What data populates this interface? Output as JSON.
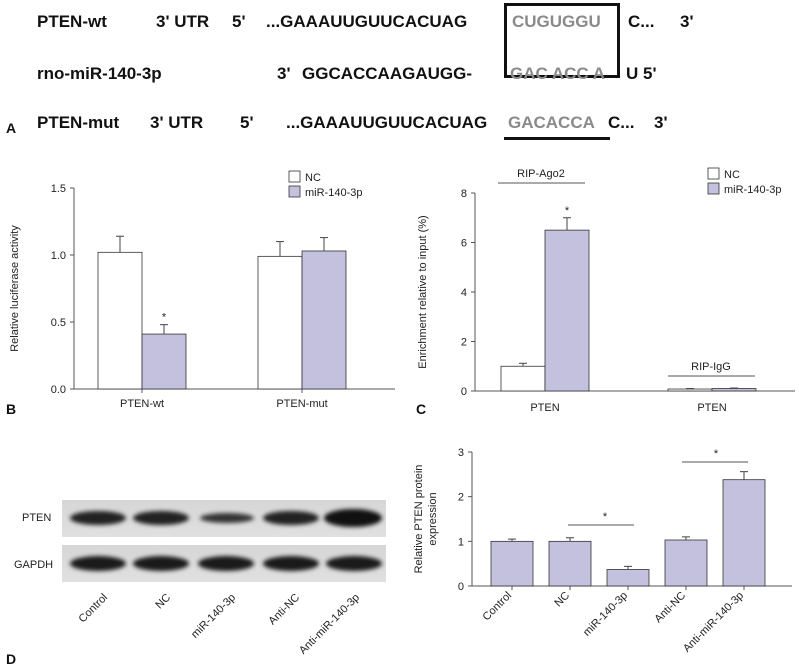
{
  "panel_a": {
    "letter": "A",
    "wt_name": "PTEN-wt",
    "wt_utr": "3' UTR",
    "wt_five": "5'",
    "wt_seq_main": "...GAAAUUGUUCACUAG",
    "wt_seq_site": "CUGUGGU",
    "wt_seq_tail": "C...",
    "wt_three": "3'",
    "mir_name": "rno-miR-140-3p",
    "mir_three": "3'",
    "mir_seq_main": "GGCACCAAGAUGG-",
    "mir_seq_seed": "GAC ACC A",
    "mir_seq_tail": "U 5'",
    "mut_name": "PTEN-mut",
    "mut_utr": "3' UTR",
    "mut_five": "5'",
    "mut_seq_main": "...GAAAUUGUUCACUAG",
    "mut_seq_site": "GACACCA",
    "mut_seq_tail": "C...",
    "mut_three": "3'"
  },
  "panel_b": {
    "letter": "B"
  },
  "panel_c": {
    "letter": "C"
  },
  "panel_d": {
    "letter": "D",
    "blot_rows": [
      "PTEN",
      "GAPDH"
    ],
    "lanes": [
      "Control",
      "NC",
      "miR-140-3p",
      "Anti-NC",
      "Anti-miR-140-3p"
    ]
  },
  "colors": {
    "nc": "#ffffff",
    "mir": "#c3c1dd",
    "stroke": "#333333"
  },
  "chart_data": [
    {
      "id": "B",
      "type": "bar",
      "ylabel": "Relative luciferase activity",
      "ylim": [
        0,
        1.5
      ],
      "yticks": [
        "0.0",
        "0.5",
        "1.0",
        "1.5"
      ],
      "categories": [
        "PTEN-wt",
        "PTEN-mut"
      ],
      "series": [
        {
          "name": "NC",
          "values": [
            1.02,
            0.99
          ],
          "errors": [
            0.12,
            0.11
          ]
        },
        {
          "name": "miR-140-3p",
          "values": [
            0.41,
            1.03
          ],
          "errors": [
            0.07,
            0.1
          ]
        }
      ],
      "annotations": [
        "*"
      ],
      "legend": "top-right"
    },
    {
      "id": "C",
      "type": "bar",
      "ylabel": "Enrichment relative to input (%)",
      "ylim": [
        0,
        8
      ],
      "yticks": [
        "0",
        "2",
        "4",
        "6",
        "8"
      ],
      "categories": [
        "PTEN",
        "PTEN"
      ],
      "group_labels": [
        "RIP-Ago2",
        "RIP-IgG"
      ],
      "series": [
        {
          "name": "NC",
          "values": [
            1.0,
            0.08
          ],
          "errors": [
            0.12,
            0.02
          ]
        },
        {
          "name": "miR-140-3p",
          "values": [
            6.5,
            0.1
          ],
          "errors": [
            0.5,
            0.02
          ]
        }
      ],
      "annotations": [
        "*"
      ],
      "legend": "top-right"
    },
    {
      "id": "D",
      "type": "bar",
      "ylabel": "Relative PTEN protein expression",
      "ylim": [
        0,
        3
      ],
      "yticks": [
        "0",
        "1",
        "2",
        "3"
      ],
      "categories": [
        "Control",
        "NC",
        "miR-140-3p",
        "Anti-NC",
        "Anti-miR-140-3p"
      ],
      "values": [
        1.0,
        1.0,
        0.37,
        1.03,
        2.38
      ],
      "errors": [
        0.05,
        0.08,
        0.07,
        0.07,
        0.18
      ],
      "annotations": [
        "*",
        "*"
      ]
    }
  ]
}
